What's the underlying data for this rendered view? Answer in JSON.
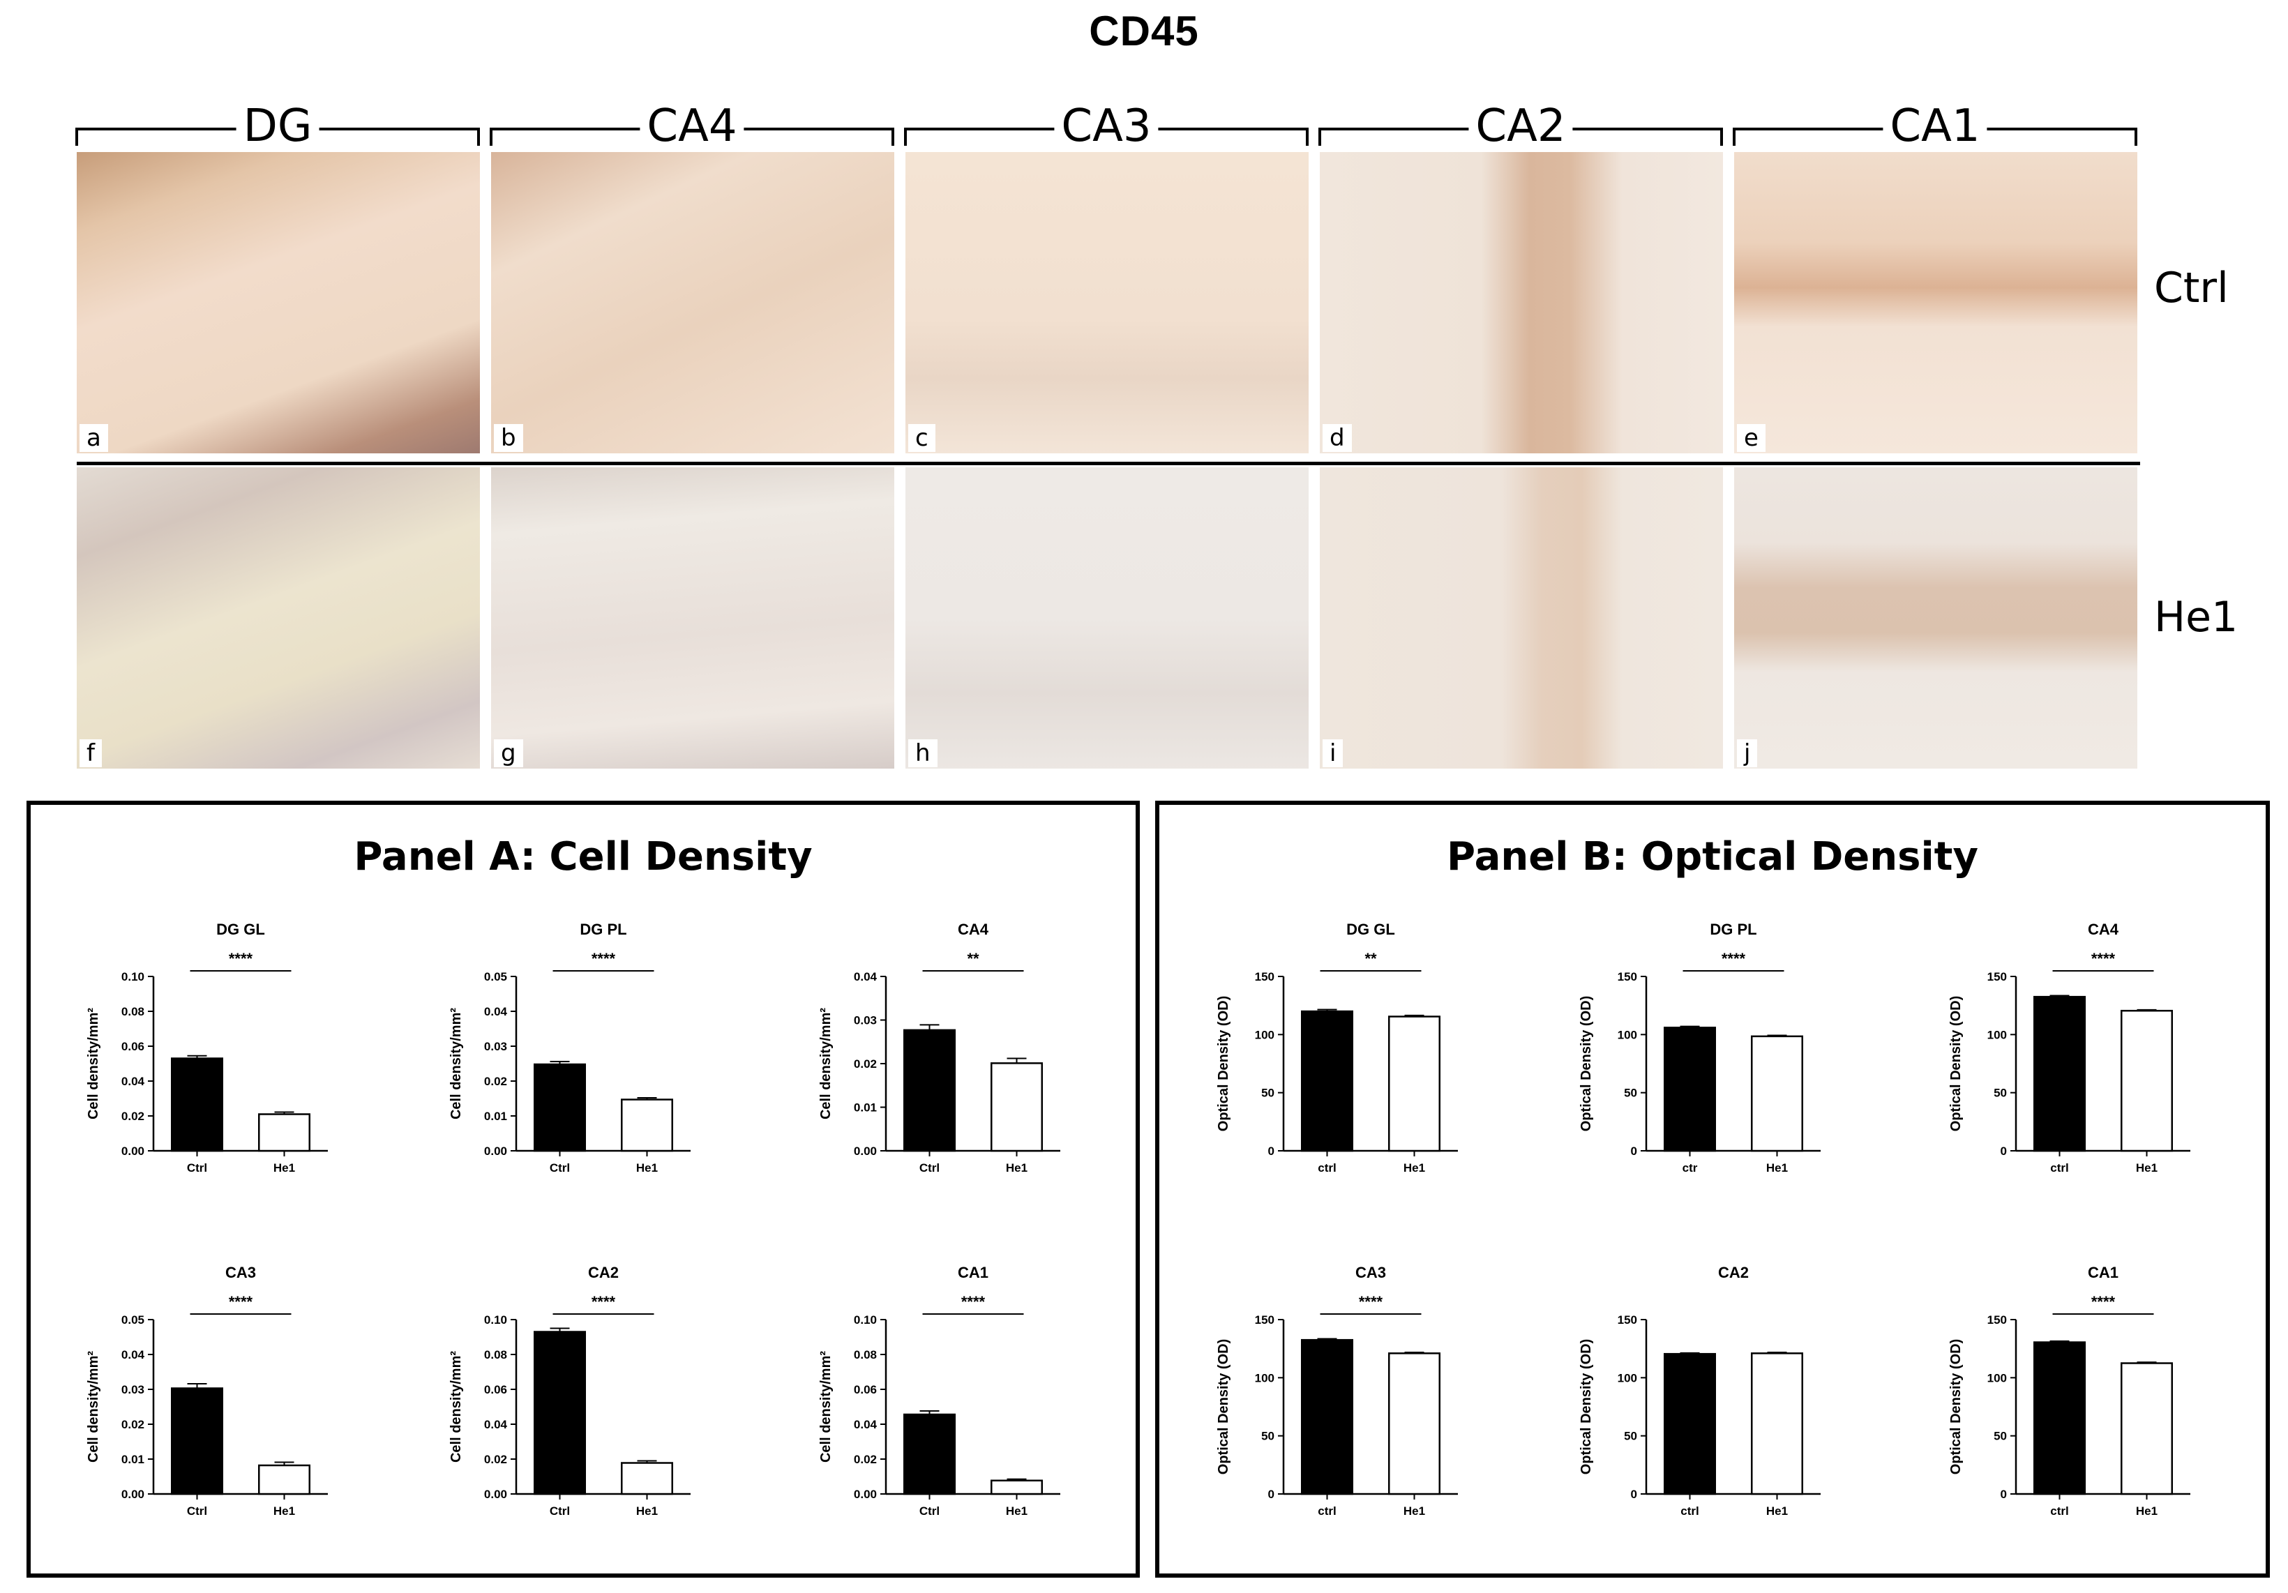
{
  "figure": {
    "title": "CD45",
    "regions": [
      "DG",
      "CA4",
      "CA3",
      "CA2",
      "CA1"
    ],
    "row_labels": [
      "Ctrl",
      "He1"
    ],
    "micrographs": [
      {
        "letter": "a",
        "region": "DG",
        "group": "Ctrl"
      },
      {
        "letter": "b",
        "region": "CA4",
        "group": "Ctrl"
      },
      {
        "letter": "c",
        "region": "CA3",
        "group": "Ctrl"
      },
      {
        "letter": "d",
        "region": "CA2",
        "group": "Ctrl"
      },
      {
        "letter": "e",
        "region": "CA1",
        "group": "Ctrl"
      },
      {
        "letter": "f",
        "region": "DG",
        "group": "He1"
      },
      {
        "letter": "g",
        "region": "CA4",
        "group": "He1"
      },
      {
        "letter": "h",
        "region": "CA3",
        "group": "He1"
      },
      {
        "letter": "i",
        "region": "CA2",
        "group": "He1"
      },
      {
        "letter": "j",
        "region": "CA1",
        "group": "He1"
      }
    ],
    "panel_a_title": "Panel A: Cell Density",
    "panel_b_title": "Panel B: Optical Density",
    "colors": {
      "ctrl_bar": "#000000",
      "he1_bar": "#ffffff",
      "bar_edge": "#000000"
    }
  },
  "chart_data": [
    {
      "type": "bar",
      "panel": "A",
      "title": "DG GL",
      "ylabel": "Cell density/mm²",
      "ylim": [
        0,
        0.1
      ],
      "yticks": [
        "0.00",
        "0.02",
        "0.04",
        "0.06",
        "0.08",
        "0.10"
      ],
      "categories": [
        "Ctrl",
        "He1"
      ],
      "values": [
        0.053,
        0.021
      ],
      "errors": [
        0.0015,
        0.0012
      ],
      "significance": "****"
    },
    {
      "type": "bar",
      "panel": "A",
      "title": "DG PL",
      "ylabel": "Cell density/mm²",
      "ylim": [
        0,
        0.05
      ],
      "yticks": [
        "0.00",
        "0.01",
        "0.02",
        "0.03",
        "0.04",
        "0.05"
      ],
      "categories": [
        "Ctrl",
        "He1"
      ],
      "values": [
        0.0248,
        0.0147
      ],
      "errors": [
        0.0008,
        0.0005
      ],
      "significance": "****"
    },
    {
      "type": "bar",
      "panel": "A",
      "title": "CA4",
      "ylabel": "Cell density/mm²",
      "ylim": [
        0,
        0.04
      ],
      "yticks": [
        "0.00",
        "0.01",
        "0.02",
        "0.03",
        "0.04"
      ],
      "categories": [
        "Ctrl",
        "He1"
      ],
      "values": [
        0.0277,
        0.0201
      ],
      "errors": [
        0.0012,
        0.0011
      ],
      "significance": "**"
    },
    {
      "type": "bar",
      "panel": "A",
      "title": "CA3",
      "ylabel": "Cell density/mm²",
      "ylim": [
        0,
        0.05
      ],
      "yticks": [
        "0.00",
        "0.01",
        "0.02",
        "0.03",
        "0.04",
        "0.05"
      ],
      "categories": [
        "Ctrl",
        "He1"
      ],
      "values": [
        0.0303,
        0.0082
      ],
      "errors": [
        0.0013,
        0.0009
      ],
      "significance": "****"
    },
    {
      "type": "bar",
      "panel": "A",
      "title": "CA2",
      "ylabel": "Cell density/mm²",
      "ylim": [
        0,
        0.1
      ],
      "yticks": [
        "0.00",
        "0.02",
        "0.04",
        "0.06",
        "0.08",
        "0.10"
      ],
      "categories": [
        "Ctrl",
        "He1"
      ],
      "values": [
        0.093,
        0.0178
      ],
      "errors": [
        0.002,
        0.0012
      ],
      "significance": "****"
    },
    {
      "type": "bar",
      "panel": "A",
      "title": "CA1",
      "ylabel": "Cell density/mm²",
      "ylim": [
        0,
        0.1
      ],
      "yticks": [
        "0.00",
        "0.02",
        "0.04",
        "0.06",
        "0.08",
        "0.10"
      ],
      "categories": [
        "Ctrl",
        "He1"
      ],
      "values": [
        0.0456,
        0.0077
      ],
      "errors": [
        0.002,
        0.0008
      ],
      "significance": "****"
    },
    {
      "type": "bar",
      "panel": "B",
      "title": "DG GL",
      "ylabel": "Optical Density (OD)",
      "ylim": [
        0,
        150
      ],
      "yticks": [
        "0",
        "50",
        "100",
        "150"
      ],
      "categories": [
        "ctrl",
        "He1"
      ],
      "values": [
        120,
        115.5
      ],
      "errors": [
        1.5,
        1.0
      ],
      "significance": "**"
    },
    {
      "type": "bar",
      "panel": "B",
      "title": "DG PL",
      "ylabel": "Optical Density (OD)",
      "ylim": [
        0,
        150
      ],
      "yticks": [
        "0",
        "50",
        "100",
        "150"
      ],
      "categories": [
        "ctr",
        "He1"
      ],
      "values": [
        106,
        98.5
      ],
      "errors": [
        1.0,
        0.8
      ],
      "significance": "****"
    },
    {
      "type": "bar",
      "panel": "B",
      "title": "CA4",
      "ylabel": "Optical Density (OD)",
      "ylim": [
        0,
        150
      ],
      "yticks": [
        "0",
        "50",
        "100",
        "150"
      ],
      "categories": [
        "ctrl",
        "He1"
      ],
      "values": [
        132.5,
        120.5
      ],
      "errors": [
        1.0,
        0.8
      ],
      "significance": "****"
    },
    {
      "type": "bar",
      "panel": "B",
      "title": "CA3",
      "ylabel": "Optical Density (OD)",
      "ylim": [
        0,
        150
      ],
      "yticks": [
        "0",
        "50",
        "100",
        "150"
      ],
      "categories": [
        "ctrl",
        "He1"
      ],
      "values": [
        132.5,
        121
      ],
      "errors": [
        1.0,
        0.8
      ],
      "significance": "****"
    },
    {
      "type": "bar",
      "panel": "B",
      "title": "CA2",
      "ylabel": "Optical Density (OD)",
      "ylim": [
        0,
        150
      ],
      "yticks": [
        "0",
        "50",
        "100",
        "150"
      ],
      "categories": [
        "ctrl",
        "He1"
      ],
      "values": [
        120.5,
        121
      ],
      "errors": [
        0.8,
        0.8
      ],
      "significance": ""
    },
    {
      "type": "bar",
      "panel": "B",
      "title": "CA1",
      "ylabel": "Optical Density (OD)",
      "ylim": [
        0,
        150
      ],
      "yticks": [
        "0",
        "50",
        "100",
        "150"
      ],
      "categories": [
        "ctrl",
        "He1"
      ],
      "values": [
        130.5,
        112.5
      ],
      "errors": [
        1.0,
        0.8
      ],
      "significance": "****"
    }
  ]
}
